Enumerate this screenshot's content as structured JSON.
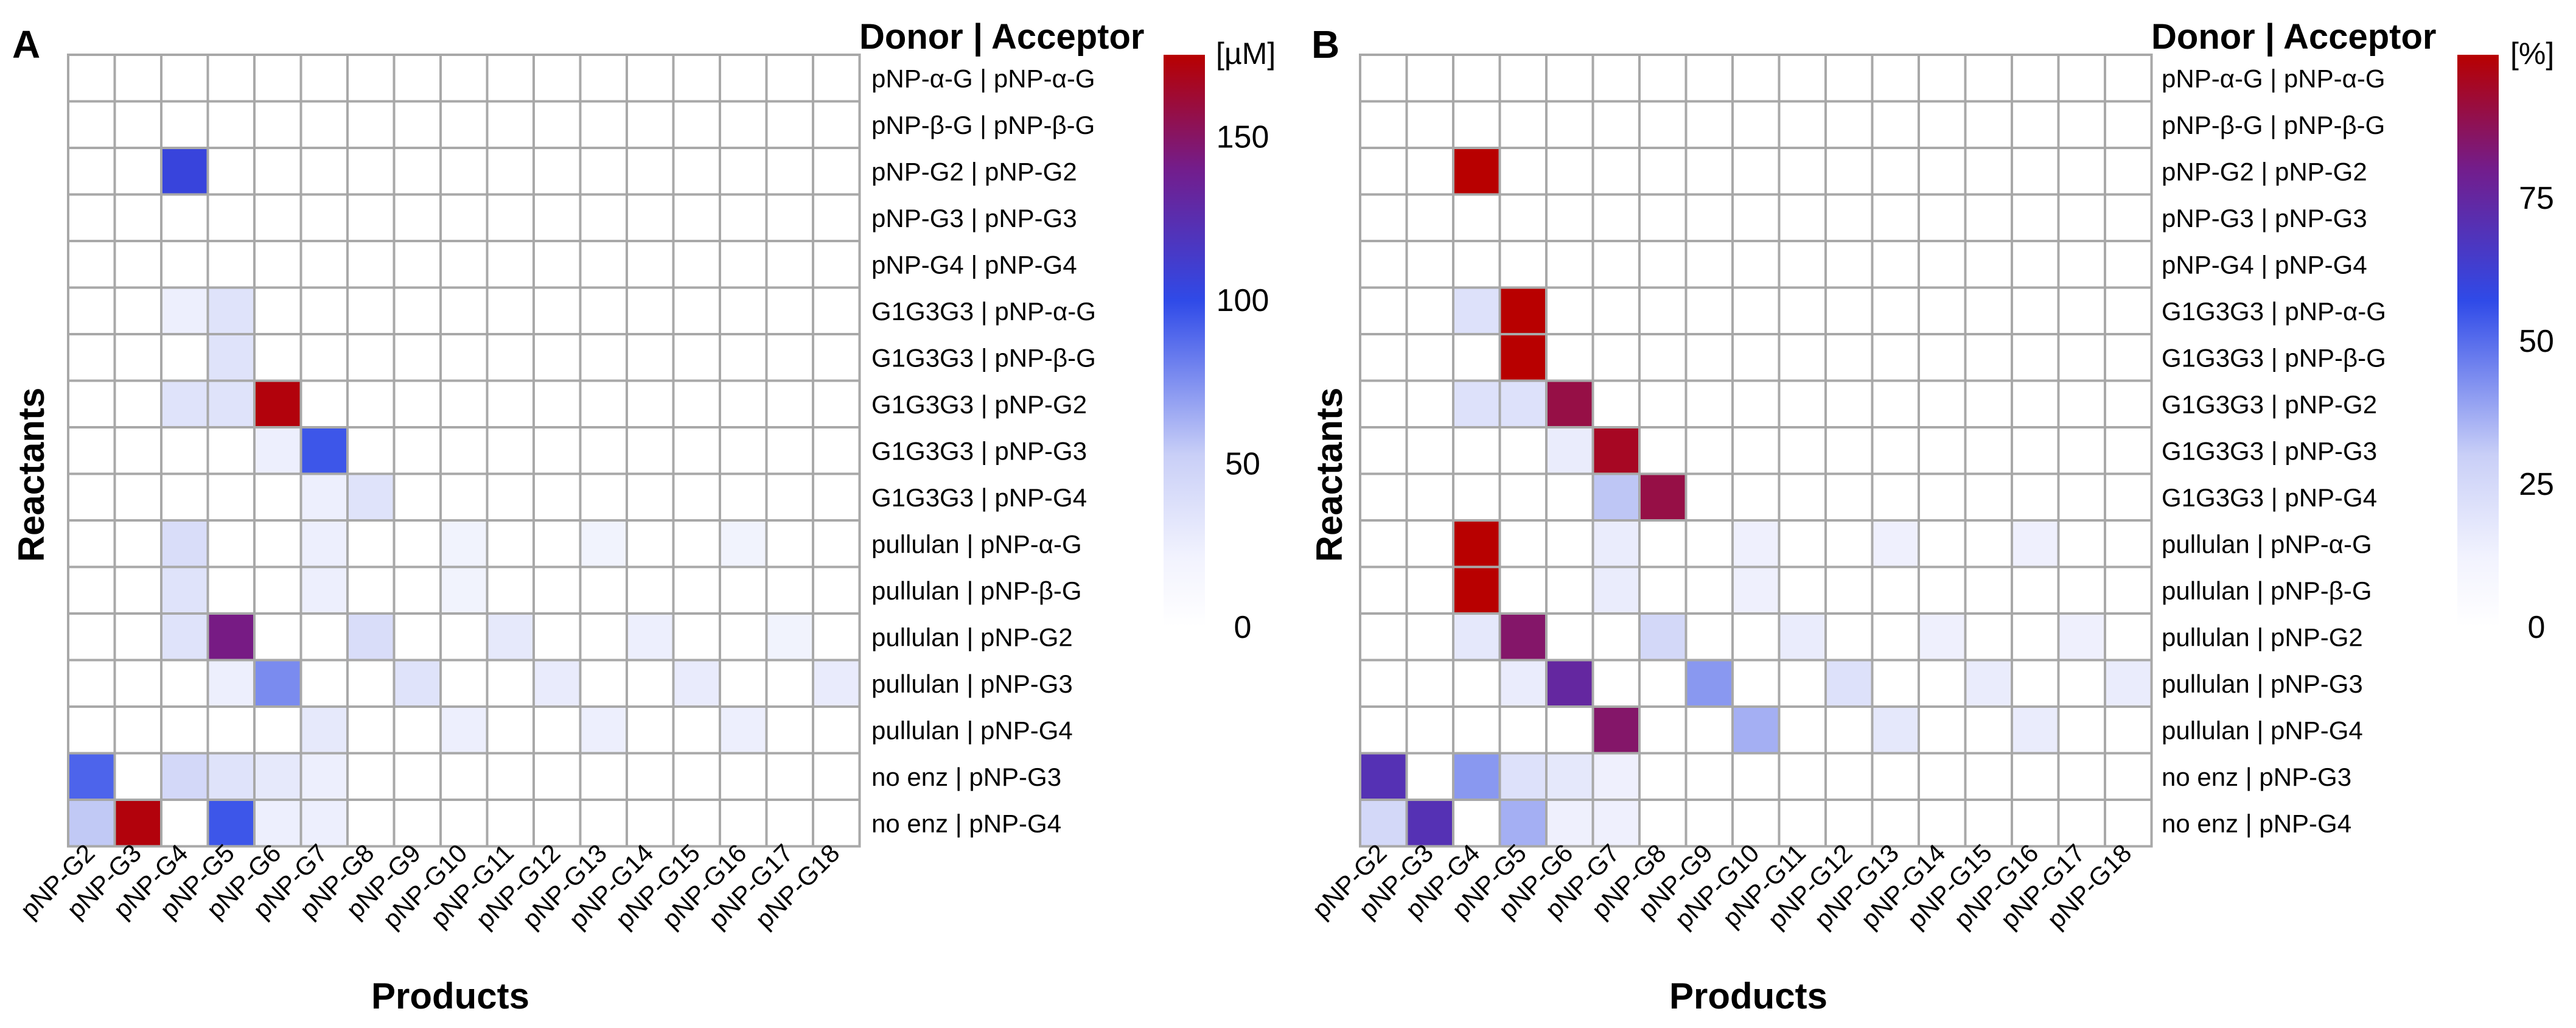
{
  "chart_data": [
    {
      "type": "heatmap",
      "panel": "A",
      "header": "Donor | Acceptor",
      "unit": "[µM]",
      "colorbar_ticks": [
        0,
        50,
        100,
        150
      ],
      "value_range": [
        0,
        175
      ],
      "xlabel": "Products",
      "ylabel": "Reactants",
      "columns": [
        "pNP-G2",
        "pNP-G3",
        "pNP-G4",
        "pNP-G5",
        "pNP-G6",
        "pNP-G7",
        "pNP-G8",
        "pNP-G9",
        "pNP-G10",
        "pNP-G11",
        "pNP-G12",
        "pNP-G13",
        "pNP-G14",
        "pNP-G15",
        "pNP-G16",
        "pNP-G17",
        "pNP-G18"
      ],
      "rows": [
        "pNP-α-G | pNP-α-G",
        "pNP-β-G | pNP-β-G",
        "pNP-G2 | pNP-G2",
        "pNP-G3 | pNP-G3",
        "pNP-G4 | pNP-G4",
        "G1G3G3 | pNP-α-G",
        "G1G3G3 | pNP-β-G",
        "G1G3G3 | pNP-G2",
        "G1G3G3 | pNP-G3",
        "G1G3G3 | pNP-G4",
        "pullulan | pNP-α-G",
        "pullulan | pNP-β-G",
        "pullulan | pNP-G2",
        "pullulan | pNP-G3",
        "pullulan | pNP-G4",
        "no enz | pNP-G3",
        "no enz | pNP-G4"
      ],
      "values": [
        [
          0,
          0,
          0,
          0,
          0,
          0,
          0,
          0,
          0,
          0,
          0,
          0,
          0,
          0,
          0,
          0,
          0
        ],
        [
          0,
          0,
          0,
          0,
          0,
          0,
          0,
          0,
          0,
          0,
          0,
          0,
          0,
          0,
          0,
          0,
          0
        ],
        [
          0,
          0,
          105,
          0,
          0,
          0,
          0,
          0,
          0,
          0,
          0,
          0,
          0,
          0,
          0,
          0,
          0
        ],
        [
          0,
          0,
          0,
          0,
          0,
          0,
          0,
          0,
          0,
          0,
          0,
          0,
          0,
          0,
          0,
          0,
          0
        ],
        [
          0,
          0,
          0,
          0,
          0,
          0,
          0,
          0,
          0,
          0,
          0,
          0,
          0,
          0,
          0,
          0,
          0
        ],
        [
          0,
          0,
          15,
          25,
          0,
          0,
          0,
          0,
          0,
          0,
          0,
          0,
          0,
          0,
          0,
          0,
          0
        ],
        [
          0,
          0,
          0,
          25,
          0,
          0,
          0,
          0,
          0,
          0,
          0,
          0,
          0,
          0,
          0,
          0,
          0
        ],
        [
          0,
          0,
          25,
          25,
          172,
          0,
          0,
          0,
          0,
          0,
          0,
          0,
          0,
          0,
          0,
          0,
          0
        ],
        [
          0,
          0,
          0,
          0,
          15,
          95,
          0,
          0,
          0,
          0,
          0,
          0,
          0,
          0,
          0,
          0,
          0
        ],
        [
          0,
          0,
          0,
          0,
          0,
          15,
          25,
          0,
          0,
          0,
          0,
          0,
          0,
          0,
          0,
          0,
          0
        ],
        [
          0,
          0,
          30,
          0,
          0,
          15,
          0,
          0,
          12,
          0,
          0,
          12,
          0,
          0,
          12,
          0,
          0
        ],
        [
          0,
          0,
          25,
          0,
          0,
          15,
          0,
          0,
          12,
          0,
          0,
          0,
          0,
          0,
          0,
          0,
          0
        ],
        [
          0,
          0,
          25,
          142,
          0,
          0,
          30,
          0,
          0,
          20,
          0,
          0,
          15,
          0,
          0,
          12,
          0
        ],
        [
          0,
          0,
          0,
          15,
          75,
          0,
          0,
          25,
          0,
          0,
          18,
          0,
          0,
          18,
          0,
          0,
          18
        ],
        [
          0,
          0,
          0,
          0,
          0,
          20,
          0,
          0,
          15,
          0,
          0,
          15,
          0,
          0,
          15,
          0,
          0
        ],
        [
          90,
          0,
          35,
          25,
          20,
          15,
          0,
          0,
          0,
          0,
          0,
          0,
          0,
          0,
          0,
          0,
          0
        ],
        [
          50,
          172,
          0,
          95,
          15,
          15,
          0,
          0,
          0,
          0,
          0,
          0,
          0,
          0,
          0,
          0,
          0
        ]
      ]
    },
    {
      "type": "heatmap",
      "panel": "B",
      "header": "Donor | Acceptor",
      "unit": "[%]",
      "colorbar_ticks": [
        0,
        25,
        50,
        75
      ],
      "value_range": [
        0,
        100
      ],
      "xlabel": "Products",
      "ylabel": "Reactants",
      "columns": [
        "pNP-G2",
        "pNP-G3",
        "pNP-G4",
        "pNP-G5",
        "pNP-G6",
        "pNP-G7",
        "pNP-G8",
        "pNP-G9",
        "pNP-G10",
        "pNP-G11",
        "pNP-G12",
        "pNP-G13",
        "pNP-G14",
        "pNP-G15",
        "pNP-G16",
        "pNP-G17",
        "pNP-G18"
      ],
      "rows": [
        "pNP-α-G | pNP-α-G",
        "pNP-β-G | pNP-β-G",
        "pNP-G2 | pNP-G2",
        "pNP-G3 | pNP-G3",
        "pNP-G4 | pNP-G4",
        "G1G3G3 | pNP-α-G",
        "G1G3G3 | pNP-β-G",
        "G1G3G3 | pNP-G2",
        "G1G3G3 | pNP-G3",
        "G1G3G3 | pNP-G4",
        "pullulan | pNP-α-G",
        "pullulan | pNP-β-G",
        "pullulan | pNP-G2",
        "pullulan | pNP-G3",
        "pullulan | pNP-G4",
        "no enz | pNP-G3",
        "no enz | pNP-G4"
      ],
      "values": [
        [
          0,
          0,
          0,
          0,
          0,
          0,
          0,
          0,
          0,
          0,
          0,
          0,
          0,
          0,
          0,
          0,
          0
        ],
        [
          0,
          0,
          0,
          0,
          0,
          0,
          0,
          0,
          0,
          0,
          0,
          0,
          0,
          0,
          0,
          0,
          0
        ],
        [
          0,
          0,
          100,
          0,
          0,
          0,
          0,
          0,
          0,
          0,
          0,
          0,
          0,
          0,
          0,
          0,
          0
        ],
        [
          0,
          0,
          0,
          0,
          0,
          0,
          0,
          0,
          0,
          0,
          0,
          0,
          0,
          0,
          0,
          0,
          0
        ],
        [
          0,
          0,
          0,
          0,
          0,
          0,
          0,
          0,
          0,
          0,
          0,
          0,
          0,
          0,
          0,
          0,
          0
        ],
        [
          0,
          0,
          15,
          100,
          0,
          0,
          0,
          0,
          0,
          0,
          0,
          0,
          0,
          0,
          0,
          0,
          0
        ],
        [
          0,
          0,
          0,
          100,
          0,
          0,
          0,
          0,
          0,
          0,
          0,
          0,
          0,
          0,
          0,
          0,
          0
        ],
        [
          0,
          0,
          15,
          15,
          90,
          0,
          0,
          0,
          0,
          0,
          0,
          0,
          0,
          0,
          0,
          0,
          0
        ],
        [
          0,
          0,
          0,
          0,
          10,
          95,
          0,
          0,
          0,
          0,
          0,
          0,
          0,
          0,
          0,
          0,
          0
        ],
        [
          0,
          0,
          0,
          0,
          0,
          30,
          90,
          0,
          0,
          0,
          0,
          0,
          0,
          0,
          0,
          0,
          0
        ],
        [
          0,
          0,
          100,
          0,
          0,
          10,
          0,
          0,
          8,
          0,
          0,
          8,
          0,
          0,
          8,
          0,
          0
        ],
        [
          0,
          0,
          100,
          0,
          0,
          10,
          0,
          0,
          8,
          0,
          0,
          0,
          0,
          0,
          0,
          0,
          0
        ],
        [
          0,
          0,
          12,
          85,
          0,
          0,
          20,
          0,
          0,
          10,
          0,
          0,
          8,
          0,
          0,
          8,
          0
        ],
        [
          0,
          0,
          0,
          10,
          75,
          0,
          0,
          40,
          0,
          0,
          15,
          0,
          0,
          10,
          0,
          0,
          10
        ],
        [
          0,
          0,
          0,
          0,
          0,
          85,
          0,
          0,
          35,
          0,
          0,
          12,
          0,
          0,
          10,
          0,
          0
        ],
        [
          70,
          0,
          40,
          15,
          12,
          8,
          0,
          0,
          0,
          0,
          0,
          0,
          0,
          0,
          0,
          0,
          0
        ],
        [
          20,
          70,
          0,
          35,
          8,
          8,
          0,
          0,
          0,
          0,
          0,
          0,
          0,
          0,
          0,
          0,
          0
        ]
      ]
    }
  ]
}
